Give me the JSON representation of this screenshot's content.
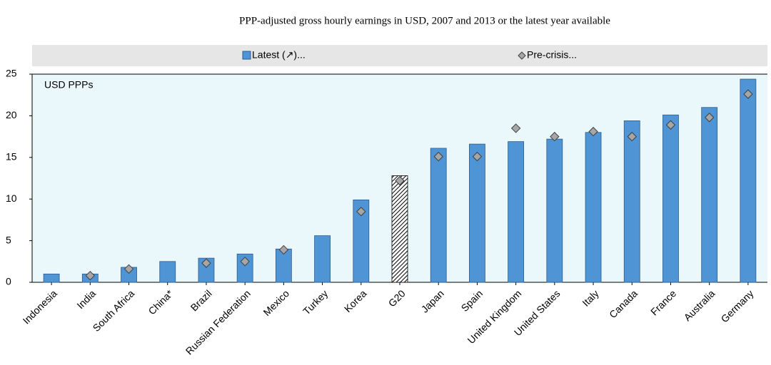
{
  "chart_data": {
    "type": "bar",
    "title": "PPP-adjusted gross hourly earnings in USD, 2007 and 2013 or the latest year available",
    "y_label": "USD PPPs",
    "categories": [
      "Indonesia",
      "India",
      "South Africa",
      "China*",
      "Brazil",
      "Russian Federation",
      "Mexico",
      "Turkey",
      "Korea",
      "G20",
      "Japan",
      "Spain",
      "United Kingdom",
      "United States",
      "Italy",
      "Canada",
      "France",
      "Australia",
      "Germany"
    ],
    "series": [
      {
        "name": "Latest (↗)...",
        "mark": "bar",
        "color": "#4f94d4",
        "hatch_index": 9,
        "values": [
          1.0,
          1.0,
          1.8,
          2.5,
          2.9,
          3.4,
          4.0,
          5.6,
          9.9,
          12.8,
          16.1,
          16.6,
          16.9,
          17.2,
          18.0,
          19.4,
          20.1,
          21.0,
          24.4
        ]
      },
      {
        "name": "Pre-crisis...",
        "mark": "diamond",
        "color": "#a6a6a6",
        "values": [
          null,
          0.8,
          1.6,
          null,
          2.3,
          2.5,
          3.9,
          null,
          8.5,
          12.2,
          15.1,
          15.1,
          18.5,
          17.5,
          18.1,
          17.5,
          18.9,
          19.8,
          22.6
        ]
      }
    ],
    "ylim": [
      0,
      25
    ],
    "yticks": [
      0,
      5,
      10,
      15,
      20,
      25
    ],
    "grid": false
  }
}
